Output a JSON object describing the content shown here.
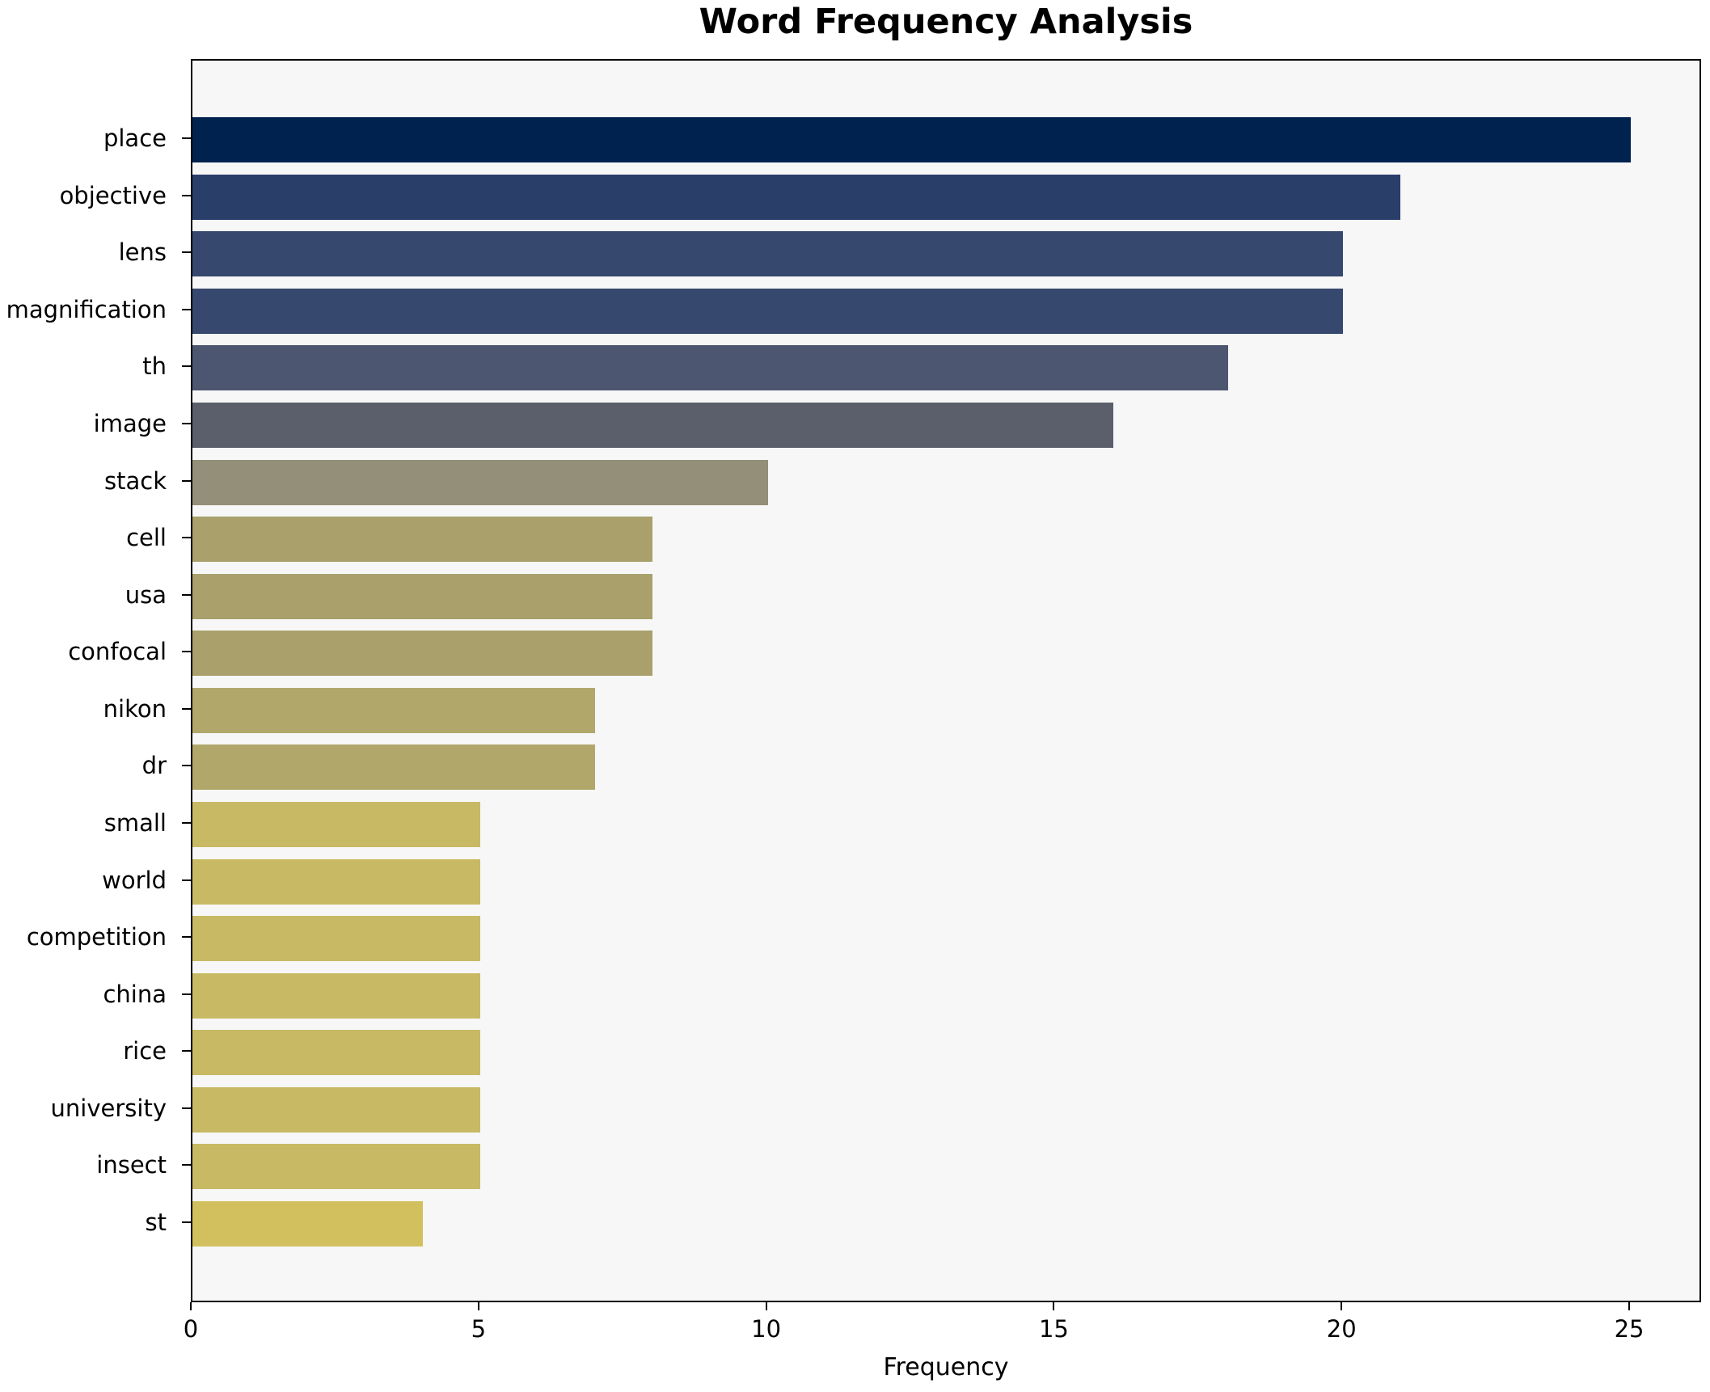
{
  "chart_data": {
    "type": "bar",
    "orientation": "horizontal",
    "title": "Word Frequency Analysis",
    "xlabel": "Frequency",
    "ylabel": "",
    "categories": [
      "place",
      "objective",
      "lens",
      "magnification",
      "th",
      "image",
      "stack",
      "cell",
      "usa",
      "confocal",
      "nikon",
      "dr",
      "small",
      "world",
      "competition",
      "china",
      "rice",
      "university",
      "insect",
      "st"
    ],
    "values": [
      25,
      21,
      20,
      20,
      18,
      16,
      10,
      8,
      8,
      8,
      7,
      7,
      5,
      5,
      5,
      5,
      5,
      5,
      5,
      4
    ],
    "bar_colors": [
      "#00224f",
      "#2a3e6a",
      "#36486e",
      "#36486e",
      "#4c5670",
      "#5a5f6b",
      "#938f78",
      "#a9a06c",
      "#a9a06c",
      "#a9a06c",
      "#b1a76b",
      "#b1a76b",
      "#c8b964",
      "#c8b964",
      "#c8b964",
      "#c8b964",
      "#c8b964",
      "#c8b964",
      "#c8b964",
      "#d2c05e"
    ],
    "xlim": [
      0,
      26.25
    ],
    "x_ticks": [
      0,
      5,
      10,
      15,
      20,
      25
    ],
    "x_tick_labels": [
      "0",
      "5",
      "10",
      "15",
      "20",
      "25"
    ],
    "grid": false,
    "legend": false,
    "plot_bg": "#f7f7f7",
    "fig_bg": "#ffffff",
    "bar_gap_color": "#f7f7f7"
  }
}
